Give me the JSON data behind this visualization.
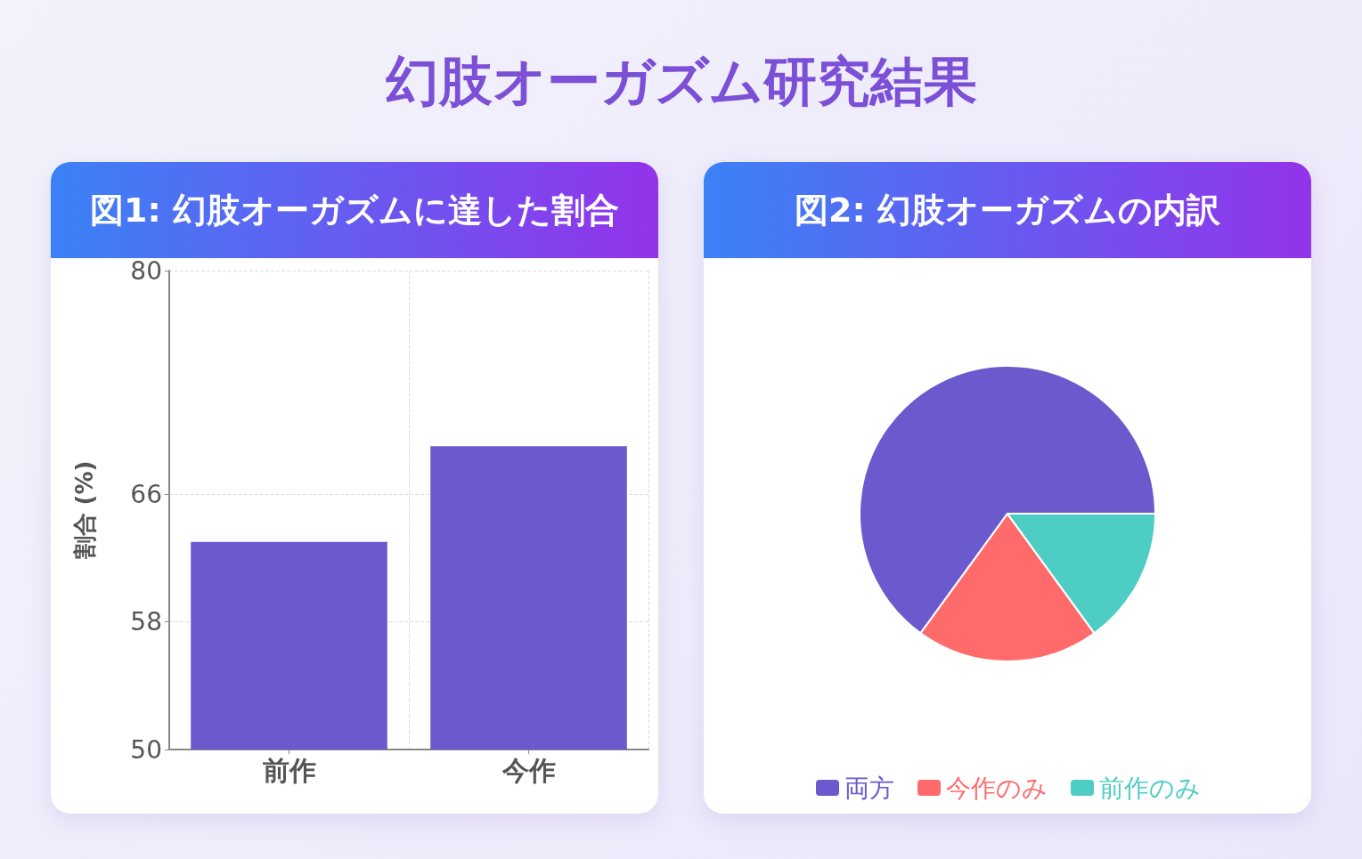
{
  "chart_data": [
    {
      "type": "bar",
      "title": "幻肢オーガズム研究結果",
      "subtitle": "図1: 幻肢オーガズムに達した割合",
      "ylabel": "割合 (%)",
      "categories": [
        "前作",
        "今作"
      ],
      "values": [
        63,
        69
      ],
      "color": "#6a5acd",
      "ylim": [
        50,
        80
      ],
      "yticks": [
        50,
        58,
        66,
        80
      ],
      "grid": true,
      "legend": false
    },
    {
      "type": "pie",
      "title": "図2: 幻肢オーガズムの内訳",
      "categories": [
        "両方",
        "今作のみ",
        "前作のみ"
      ],
      "values": [
        65,
        20,
        15
      ],
      "colors": [
        "#6a5acd",
        "#ff6b6b",
        "#4ecdc4"
      ],
      "legend": "bottom"
    }
  ]
}
